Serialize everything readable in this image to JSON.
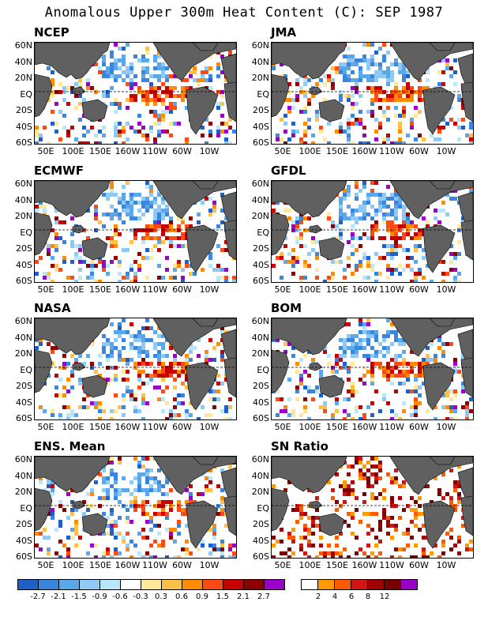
{
  "title": "Anomalous Upper 300m Heat Content (C): SEP 1987",
  "lat_labels": [
    "60N",
    "40N",
    "20N",
    "EQ",
    "20S",
    "40S",
    "60S"
  ],
  "lon_labels": [
    "50E",
    "100E",
    "150E",
    "160W",
    "110W",
    "60W",
    "10W"
  ],
  "colors": {
    "land": "#606060",
    "equator": "#000000"
  },
  "chart_data": [
    {
      "type": "heatmap",
      "panel": "NCEP"
    },
    {
      "type": "heatmap",
      "panel": "JMA"
    },
    {
      "type": "heatmap",
      "panel": "ECMWF"
    },
    {
      "type": "heatmap",
      "panel": "GFDL"
    },
    {
      "type": "heatmap",
      "panel": "NASA"
    },
    {
      "type": "heatmap",
      "panel": "BOM"
    },
    {
      "type": "heatmap",
      "panel": "ENS. Mean"
    },
    {
      "type": "heatmap",
      "panel": "SN Ratio"
    }
  ],
  "anomaly_scale": {
    "colors": [
      "#1f5fc8",
      "#3a86dc",
      "#5aa7ec",
      "#8fc9f5",
      "#b8e6fa",
      "#ffffff",
      "#ffe89a",
      "#ffc04a",
      "#ff8c00",
      "#ff4a14",
      "#c80000",
      "#8c0000",
      "#9b00c8"
    ],
    "ticks": [
      "-2.7",
      "-2.1",
      "-1.5",
      "-0.9",
      "-0.6",
      "-0.3",
      "0.3",
      "0.6",
      "0.9",
      "1.5",
      "2.1",
      "2.7"
    ]
  },
  "sn_scale": {
    "colors": [
      "#ffffff",
      "#ff9a00",
      "#ff5a00",
      "#d21414",
      "#a00000",
      "#780000",
      "#9b00c8"
    ],
    "ticks": [
      "2",
      "4",
      "6",
      "8",
      "12"
    ]
  }
}
